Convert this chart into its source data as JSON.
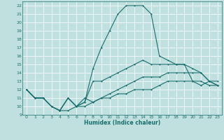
{
  "background_color": "#c0e0e0",
  "grid_color": "#ffffff",
  "line_color": "#1a6e6e",
  "xlabel": "Humidex (Indice chaleur)",
  "xlim": [
    -0.5,
    23.5
  ],
  "ylim": [
    9,
    22.5
  ],
  "xticks": [
    0,
    1,
    2,
    3,
    4,
    5,
    6,
    7,
    8,
    9,
    10,
    11,
    12,
    13,
    14,
    15,
    16,
    17,
    18,
    19,
    20,
    21,
    22,
    23
  ],
  "yticks": [
    9,
    10,
    11,
    12,
    13,
    14,
    15,
    16,
    17,
    18,
    19,
    20,
    21,
    22
  ],
  "line_peak_x": [
    0,
    1,
    2,
    3,
    4,
    5,
    6,
    7,
    8,
    9,
    10,
    11,
    12,
    13,
    14,
    15,
    16,
    17,
    18,
    19,
    20,
    21,
    22,
    23
  ],
  "line_peak_y": [
    12,
    11,
    11,
    10,
    9.5,
    11,
    10,
    10.5,
    14.5,
    17,
    19,
    21,
    22,
    22,
    22,
    21,
    16,
    15.5,
    15,
    15,
    13,
    12.5,
    13,
    12.5
  ],
  "line_high_x": [
    0,
    1,
    2,
    3,
    4,
    5,
    6,
    7,
    8,
    9,
    10,
    11,
    12,
    13,
    14,
    15,
    16,
    17,
    18,
    19,
    20,
    21,
    22,
    23
  ],
  "line_high_y": [
    12,
    11,
    11,
    10,
    9.5,
    11,
    10,
    10.5,
    13,
    13,
    13.5,
    14,
    14.5,
    15,
    15.5,
    15,
    15,
    15,
    15,
    15,
    14.5,
    14,
    13,
    12.5
  ],
  "line_mid_x": [
    0,
    1,
    2,
    3,
    4,
    5,
    6,
    7,
    8,
    9,
    10,
    11,
    12,
    13,
    14,
    15,
    16,
    17,
    18,
    19,
    20,
    21,
    22,
    23
  ],
  "line_mid_y": [
    12,
    11,
    11,
    10,
    9.5,
    11,
    10,
    11,
    10.5,
    11,
    11.5,
    12,
    12.5,
    13,
    13.5,
    13.5,
    13.5,
    14,
    14,
    14,
    14,
    14,
    13,
    13
  ],
  "line_low_x": [
    0,
    1,
    2,
    3,
    4,
    5,
    6,
    7,
    8,
    9,
    10,
    11,
    12,
    13,
    14,
    15,
    16,
    17,
    18,
    19,
    20,
    21,
    22,
    23
  ],
  "line_low_y": [
    12,
    11,
    11,
    10,
    9.5,
    9.5,
    10,
    10,
    10.5,
    11,
    11,
    11.5,
    11.5,
    12,
    12,
    12,
    12.5,
    13,
    13,
    13,
    13,
    13,
    12.5,
    12.5
  ]
}
